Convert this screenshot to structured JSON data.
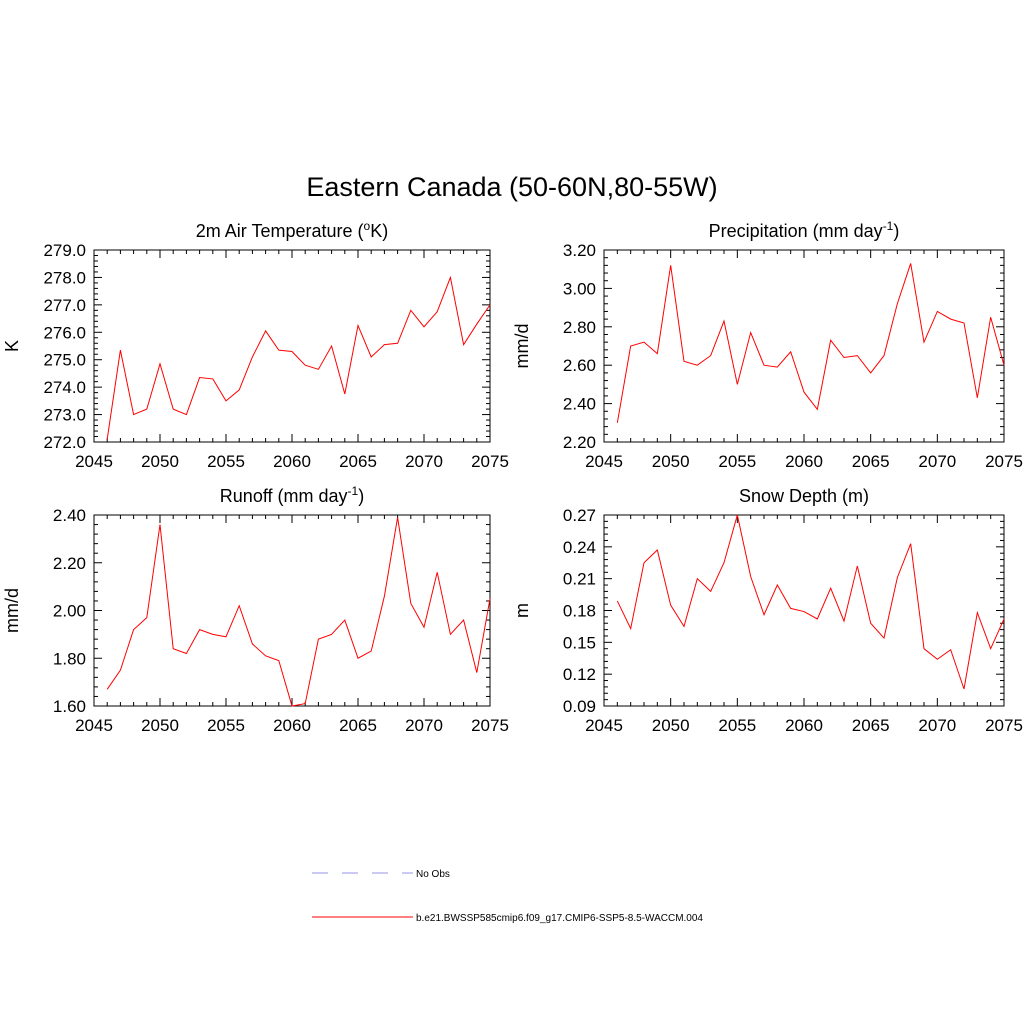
{
  "title": "Eastern Canada (50-60N,80-55W)",
  "colors": {
    "series": "#ff0000",
    "obs": "#aaaaee",
    "axis": "#000000"
  },
  "legend": {
    "obs_label": "No Obs",
    "model_label": "b.e21.BWSSP585cmip6.f09_g17.CMIP6-SSP5-8.5-WACCM.004"
  },
  "chart_data": [
    {
      "type": "line",
      "title": "2m Air Temperature (°K)",
      "title_main": "2m Air Temperature (",
      "title_sup": "o",
      "title_tail": "K)",
      "ylabel": "K",
      "xlim": [
        2045,
        2075
      ],
      "ylim": [
        272.0,
        279.0
      ],
      "xticks": [
        "2045",
        "2050",
        "2055",
        "2060",
        "2065",
        "2070",
        "2075"
      ],
      "yticks": [
        "272.0",
        "273.0",
        "274.0",
        "275.0",
        "276.0",
        "277.0",
        "278.0",
        "279.0"
      ],
      "x": [
        2046,
        2047,
        2048,
        2049,
        2050,
        2051,
        2052,
        2053,
        2054,
        2055,
        2056,
        2057,
        2058,
        2059,
        2060,
        2061,
        2062,
        2063,
        2064,
        2065,
        2066,
        2067,
        2068,
        2069,
        2070,
        2071,
        2072,
        2073,
        2074,
        2075
      ],
      "values": [
        272.1,
        275.35,
        273.0,
        273.2,
        274.85,
        273.2,
        273.0,
        274.35,
        274.3,
        273.5,
        273.9,
        275.1,
        276.05,
        275.35,
        275.3,
        274.8,
        274.65,
        275.5,
        273.75,
        276.25,
        275.1,
        275.55,
        275.6,
        276.8,
        276.2,
        276.75,
        278.0,
        275.55,
        276.3,
        277.0
      ]
    },
    {
      "type": "line",
      "title": "Precipitation (mm day-1)",
      "title_main": "Precipitation (mm day",
      "title_sup": "-1",
      "title_tail": ")",
      "ylabel": "mm/d",
      "xlim": [
        2045,
        2075
      ],
      "ylim": [
        2.2,
        3.2
      ],
      "xticks": [
        "2045",
        "2050",
        "2055",
        "2060",
        "2065",
        "2070",
        "2075"
      ],
      "yticks": [
        "2.20",
        "2.40",
        "2.60",
        "2.80",
        "3.00",
        "3.20"
      ],
      "x": [
        2046,
        2047,
        2048,
        2049,
        2050,
        2051,
        2052,
        2053,
        2054,
        2055,
        2056,
        2057,
        2058,
        2059,
        2060,
        2061,
        2062,
        2063,
        2064,
        2065,
        2066,
        2067,
        2068,
        2069,
        2070,
        2071,
        2072,
        2073,
        2074,
        2075
      ],
      "values": [
        2.3,
        2.7,
        2.72,
        2.66,
        3.12,
        2.62,
        2.6,
        2.65,
        2.83,
        2.5,
        2.77,
        2.6,
        2.59,
        2.67,
        2.46,
        2.37,
        2.73,
        2.64,
        2.65,
        2.56,
        2.65,
        2.92,
        3.13,
        2.72,
        2.88,
        2.84,
        2.82,
        2.43,
        2.85,
        2.6
      ]
    },
    {
      "type": "line",
      "title": "Runoff (mm day-1)",
      "title_main": "Runoff (mm day",
      "title_sup": "-1",
      "title_tail": ")",
      "ylabel": "mm/d",
      "xlim": [
        2045,
        2075
      ],
      "ylim": [
        1.6,
        2.4
      ],
      "xticks": [
        "2045",
        "2050",
        "2055",
        "2060",
        "2065",
        "2070",
        "2075"
      ],
      "yticks": [
        "1.60",
        "1.80",
        "2.00",
        "2.20",
        "2.40"
      ],
      "x": [
        2046,
        2047,
        2048,
        2049,
        2050,
        2051,
        2052,
        2053,
        2054,
        2055,
        2056,
        2057,
        2058,
        2059,
        2060,
        2061,
        2062,
        2063,
        2064,
        2065,
        2066,
        2067,
        2068,
        2069,
        2070,
        2071,
        2072,
        2073,
        2074,
        2075
      ],
      "values": [
        1.67,
        1.75,
        1.92,
        1.97,
        2.36,
        1.84,
        1.82,
        1.92,
        1.9,
        1.89,
        2.02,
        1.86,
        1.81,
        1.79,
        1.6,
        1.61,
        1.88,
        1.9,
        1.96,
        1.8,
        1.83,
        2.06,
        2.39,
        2.03,
        1.93,
        2.16,
        1.9,
        1.96,
        1.74,
        2.05
      ]
    },
    {
      "type": "line",
      "title": "Snow Depth (m)",
      "title_main": "Snow Depth (m)",
      "title_sup": "",
      "title_tail": "",
      "ylabel": "m",
      "xlim": [
        2045,
        2075
      ],
      "ylim": [
        0.09,
        0.27
      ],
      "xticks": [
        "2045",
        "2050",
        "2055",
        "2060",
        "2065",
        "2070",
        "2075"
      ],
      "yticks": [
        "0.09",
        "0.12",
        "0.15",
        "0.18",
        "0.21",
        "0.24",
        "0.27"
      ],
      "x": [
        2046,
        2047,
        2048,
        2049,
        2050,
        2051,
        2052,
        2053,
        2054,
        2055,
        2056,
        2057,
        2058,
        2059,
        2060,
        2061,
        2062,
        2063,
        2064,
        2065,
        2066,
        2067,
        2068,
        2069,
        2070,
        2071,
        2072,
        2073,
        2074,
        2075
      ],
      "values": [
        0.189,
        0.163,
        0.225,
        0.237,
        0.185,
        0.165,
        0.21,
        0.198,
        0.225,
        0.27,
        0.212,
        0.176,
        0.204,
        0.182,
        0.179,
        0.172,
        0.201,
        0.17,
        0.222,
        0.168,
        0.154,
        0.211,
        0.243,
        0.144,
        0.134,
        0.143,
        0.106,
        0.178,
        0.144,
        0.172
      ]
    }
  ]
}
